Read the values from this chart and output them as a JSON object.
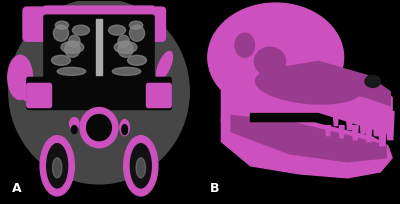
{
  "background_color": "#000000",
  "panel_A_label": "A",
  "panel_B_label": "B",
  "label_color": "#ffffff",
  "label_fontsize": 9,
  "fig_width": 4.0,
  "fig_height": 2.05,
  "dpi": 100,
  "magenta": [
    204,
    80,
    190
  ],
  "dark_gray": [
    70,
    70,
    70
  ],
  "mid_gray": [
    110,
    110,
    110
  ],
  "black": [
    10,
    10,
    10
  ],
  "light_gray": [
    150,
    150,
    150
  ],
  "white_gray": [
    200,
    200,
    200
  ]
}
